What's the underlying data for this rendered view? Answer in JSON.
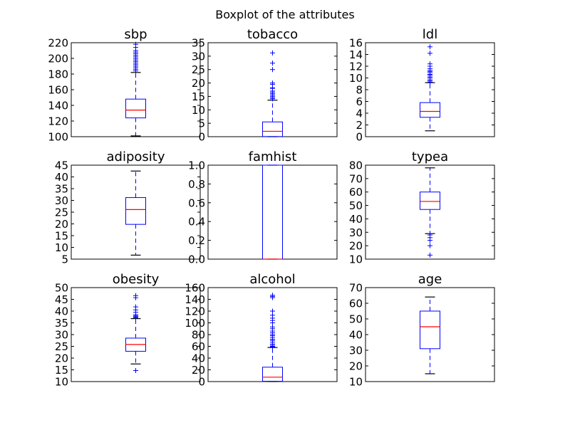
{
  "chart_data": {
    "type": "boxplot",
    "title": "Boxplot of the attributes",
    "colors": {
      "box": "#0000ff",
      "median": "#ff0000",
      "whisker": "#0000ff",
      "flier": "#0000ff",
      "cap": "#000000",
      "frame": "#000000"
    },
    "grid": false,
    "legend": "none",
    "panels": [
      {
        "title": "sbp",
        "ylim": [
          100,
          220
        ],
        "yticks": [
          100,
          120,
          140,
          160,
          180,
          200,
          220
        ],
        "tick_labels": [
          "100",
          "120",
          "140",
          "160",
          "180",
          "200",
          "220"
        ],
        "q1": 124,
        "median": 134,
        "q3": 148,
        "whisker_low": 101,
        "whisker_high": 182,
        "fliers": [
          184,
          186,
          188,
          190,
          192,
          194,
          196,
          198,
          200,
          202,
          204,
          206,
          208,
          210,
          214,
          218
        ]
      },
      {
        "title": "tobacco",
        "ylim": [
          0,
          35
        ],
        "yticks": [
          0,
          5,
          10,
          15,
          20,
          25,
          30,
          35
        ],
        "tick_labels": [
          "0",
          "5",
          "10",
          "15",
          "20",
          "25",
          "30",
          "35"
        ],
        "q1": 0.05,
        "median": 2.0,
        "q3": 5.5,
        "whisker_low": 0,
        "whisker_high": 13.6,
        "fliers": [
          14.1,
          14.5,
          15.0,
          15.5,
          16.0,
          16.5,
          17.0,
          18.0,
          18.2,
          19.5,
          20.0,
          25.0,
          27.4,
          31.2
        ]
      },
      {
        "title": "ldl",
        "ylim": [
          0,
          16
        ],
        "yticks": [
          0,
          2,
          4,
          6,
          8,
          10,
          12,
          14,
          16
        ],
        "tick_labels": [
          "0",
          "2",
          "4",
          "6",
          "8",
          "10",
          "12",
          "14",
          "16"
        ],
        "q1": 3.3,
        "median": 4.3,
        "q3": 5.8,
        "whisker_low": 1.0,
        "whisker_high": 9.2,
        "fliers": [
          9.3,
          9.5,
          9.7,
          10.0,
          10.2,
          10.5,
          10.6,
          10.9,
          11.1,
          11.3,
          11.6,
          12.0,
          12.4,
          14.2,
          15.3
        ]
      },
      {
        "title": "adiposity",
        "ylim": [
          5,
          45
        ],
        "yticks": [
          5,
          10,
          15,
          20,
          25,
          30,
          35,
          40,
          45
        ],
        "tick_labels": [
          "5",
          "10",
          "15",
          "20",
          "25",
          "30",
          "35",
          "40",
          "45"
        ],
        "q1": 19.8,
        "median": 26.1,
        "q3": 31.2,
        "whisker_low": 6.7,
        "whisker_high": 42.5,
        "fliers": []
      },
      {
        "title": "famhist",
        "ylim": [
          0,
          1
        ],
        "yticks": [
          0,
          0.2,
          0.4,
          0.6,
          0.8,
          1.0
        ],
        "tick_labels": [
          "0.0",
          "0.2",
          "0.4",
          "0.6",
          "0.8",
          "1.0"
        ],
        "q1": 0,
        "median": 0,
        "q3": 1,
        "whisker_low": 0,
        "whisker_high": 1,
        "fliers": []
      },
      {
        "title": "typea",
        "ylim": [
          10,
          80
        ],
        "yticks": [
          10,
          20,
          30,
          40,
          50,
          60,
          70,
          80
        ],
        "tick_labels": [
          "10",
          "20",
          "30",
          "40",
          "50",
          "60",
          "70",
          "80"
        ],
        "q1": 47,
        "median": 53,
        "q3": 60,
        "whisker_low": 29,
        "whisker_high": 78,
        "fliers": [
          13,
          20,
          24,
          26,
          28
        ]
      },
      {
        "title": "obesity",
        "ylim": [
          10,
          50
        ],
        "yticks": [
          10,
          15,
          20,
          25,
          30,
          35,
          40,
          45,
          50
        ],
        "tick_labels": [
          "10",
          "15",
          "20",
          "25",
          "30",
          "35",
          "40",
          "45",
          "50"
        ],
        "q1": 22.9,
        "median": 25.8,
        "q3": 28.5,
        "whisker_low": 17.5,
        "whisker_high": 36.8,
        "fliers": [
          14.7,
          37.2,
          37.4,
          37.6,
          38.0,
          38.5,
          39.5,
          40.5,
          41.8,
          45.7,
          46.6
        ]
      },
      {
        "title": "alcohol",
        "ylim": [
          0,
          160
        ],
        "yticks": [
          0,
          20,
          40,
          60,
          80,
          100,
          120,
          140,
          160
        ],
        "tick_labels": [
          "0",
          "20",
          "40",
          "60",
          "80",
          "100",
          "120",
          "140",
          "160"
        ],
        "q1": 0.5,
        "median": 7.5,
        "q3": 24.5,
        "whisker_low": 0,
        "whisker_high": 58,
        "fliers": [
          59,
          60,
          62,
          64,
          67,
          70,
          72,
          75,
          78,
          80,
          83,
          86,
          90,
          93,
          100,
          104,
          108,
          113,
          120,
          143,
          145,
          147
        ]
      },
      {
        "title": "age",
        "ylim": [
          10,
          70
        ],
        "yticks": [
          10,
          20,
          30,
          40,
          50,
          60,
          70
        ],
        "tick_labels": [
          "10",
          "20",
          "30",
          "40",
          "50",
          "60",
          "70"
        ],
        "q1": 31,
        "median": 45,
        "q3": 55,
        "whisker_low": 15,
        "whisker_high": 64,
        "fliers": []
      }
    ]
  }
}
